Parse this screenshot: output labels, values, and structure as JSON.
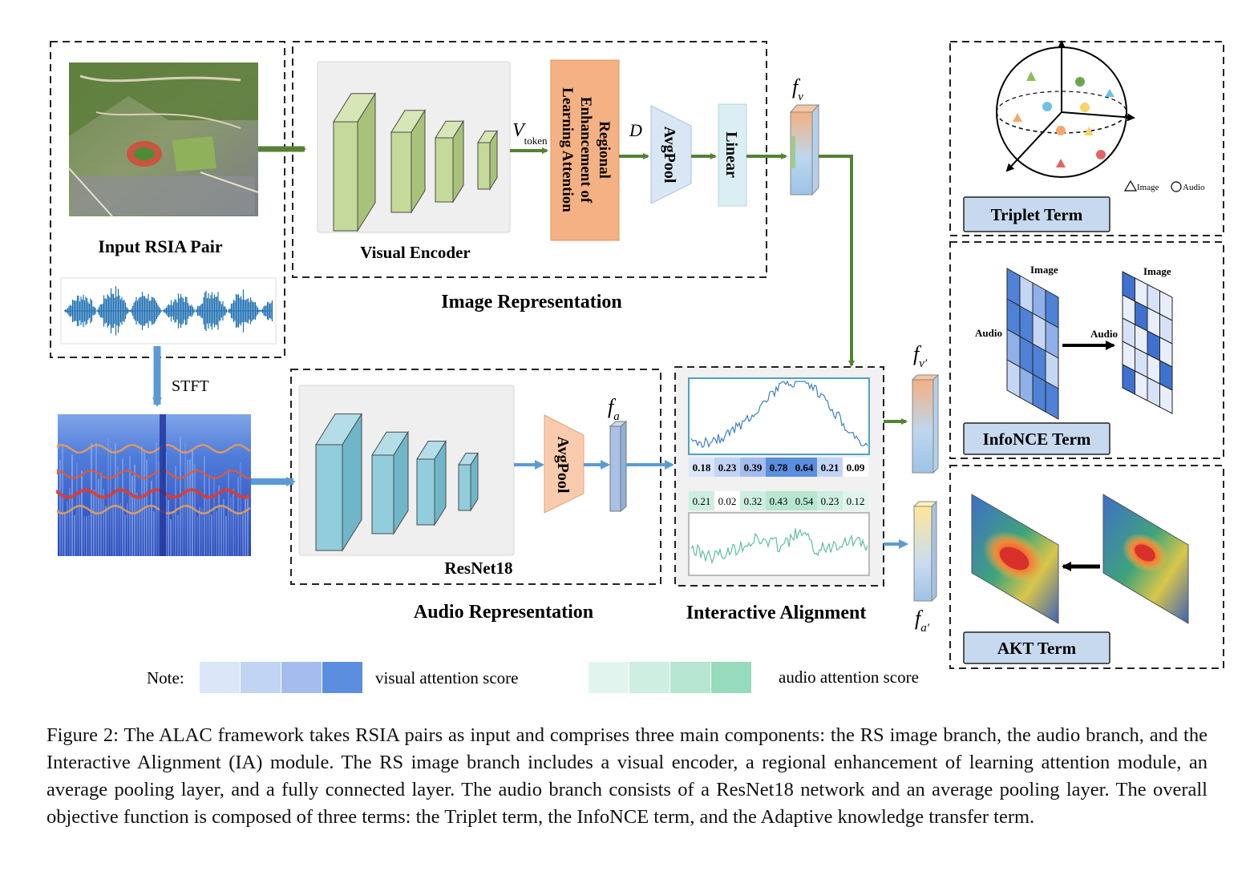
{
  "input": {
    "title": "Input RSIA Pair",
    "stft_label": "STFT"
  },
  "image_branch": {
    "encoder_label": "Visual Encoder",
    "v_token_main": "V",
    "v_token_sub": "token",
    "rela_lines": [
      "Regional",
      "Enhancement of",
      "Learning Attention"
    ],
    "d_label": "D",
    "avgpool": "AvgPool",
    "linear": "Linear",
    "fv_main": "f",
    "fv_sub": "v",
    "section_title": "Image Representation"
  },
  "audio_branch": {
    "encoder_label": "ResNet18",
    "avgpool": "AvgPool",
    "fa_main": "f",
    "fa_sub": "a",
    "section_title": "Audio Representation"
  },
  "interactive_alignment": {
    "section_title": "Interactive Alignment",
    "visual_scores": [
      "0.18",
      "0.23",
      "0.39",
      "0.78",
      "0.64",
      "0.21",
      "0.09"
    ],
    "audio_scores": [
      "0.21",
      "0.02",
      "0.32",
      "0.43",
      "0.54",
      "0.23",
      "0.12"
    ],
    "fv_prime_main": "f",
    "fv_prime_sub": "v′",
    "fa_prime_main": "f",
    "fa_prime_sub": "a′"
  },
  "triplet": {
    "title": "Triplet Term",
    "legend_image": "Image",
    "legend_audio": "Audio"
  },
  "infonce": {
    "title": "InfoNCE Term",
    "left_image_label": "Image",
    "left_audio_label": "Audio",
    "right_image_label": "Image",
    "arrow_label": "Audio"
  },
  "akt": {
    "title": "AKT Term"
  },
  "note": {
    "label": "Note:",
    "visual_legend": "visual attention score",
    "audio_legend": "audio attention score",
    "visual_colors": [
      "#dbe6f8",
      "#c2d4f3",
      "#a4bdee",
      "#5b8ede"
    ],
    "audio_colors": [
      "#e1f5ee",
      "#cdeee0",
      "#b6e6d1",
      "#96dbbb"
    ]
  },
  "caption": "Figure 2: The ALAC framework takes RSIA pairs as input and comprises three main components: the RS image branch, the audio branch, and the Interactive Alignment (IA) module. The RS image branch includes a visual encoder, a regional enhancement of learning attention module, an average pooling layer, and a fully connected layer. The audio branch consists of a ResNet18 network and an average pooling layer. The overall objective function is composed of three terms: the Triplet term, the InfoNCE term, and the Adaptive knowledge transfer term.",
  "colors": {
    "green_arrow": "#548235",
    "blue_arrow": "#5b9bd5",
    "rela_fill": "#f4b183",
    "visual_block": "#c5d99a",
    "audio_block": "#8fcfdb",
    "term_box": "#c7d9ef"
  }
}
